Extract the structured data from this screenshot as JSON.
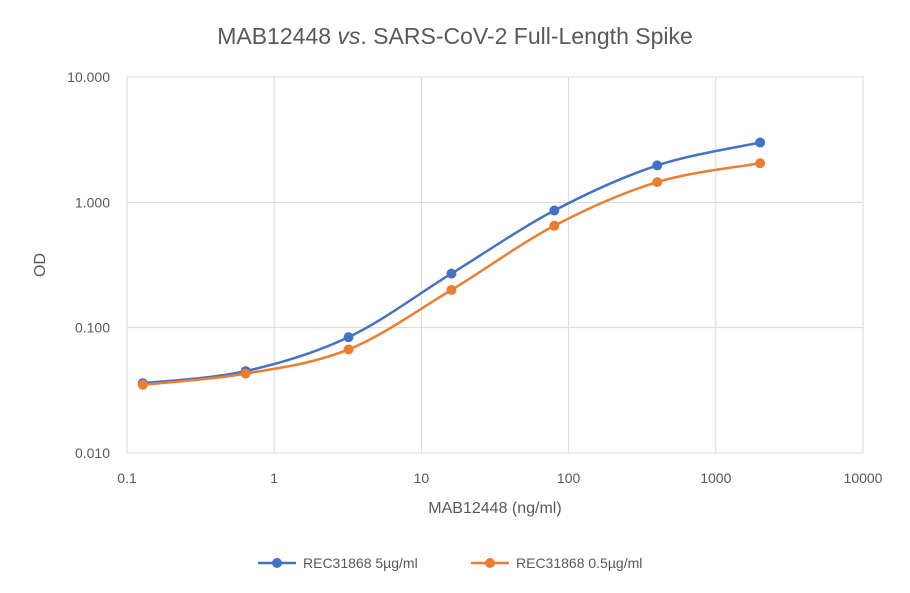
{
  "chart_data": {
    "type": "scatter",
    "title": {
      "prefix": "MAB12448 ",
      "italic": "vs",
      "suffix": ". SARS-CoV-2 Full-Length Spike"
    },
    "xlabel": "MAB12448 (ng/ml)",
    "ylabel": "OD",
    "x_scale": "log",
    "y_scale": "log",
    "xlim": [
      0.1,
      10000
    ],
    "ylim": [
      0.01,
      10
    ],
    "x_ticks": [
      0.1,
      1,
      10,
      100,
      1000,
      10000
    ],
    "x_tick_labels": [
      "0.1",
      "1",
      "10",
      "100",
      "1000",
      "10000"
    ],
    "y_ticks": [
      0.01,
      0.1,
      1,
      10
    ],
    "y_tick_labels": [
      "0.010",
      "0.100",
      "1.000",
      "10.000"
    ],
    "grid": true,
    "legend_position": "bottom",
    "smooth_lines": true,
    "series": [
      {
        "name": "REC31868 5µg/ml",
        "color": "#4472C4",
        "x": [
          0.128,
          0.64,
          3.2,
          16,
          80,
          400,
          2000
        ],
        "y": [
          0.036,
          0.045,
          0.084,
          0.27,
          0.86,
          1.97,
          3.0
        ]
      },
      {
        "name": "REC31868 0.5µg/ml",
        "color": "#ED7D31",
        "x": [
          0.128,
          0.64,
          3.2,
          16,
          80,
          400,
          2000
        ],
        "y": [
          0.035,
          0.043,
          0.067,
          0.2,
          0.65,
          1.45,
          2.05
        ]
      }
    ]
  }
}
